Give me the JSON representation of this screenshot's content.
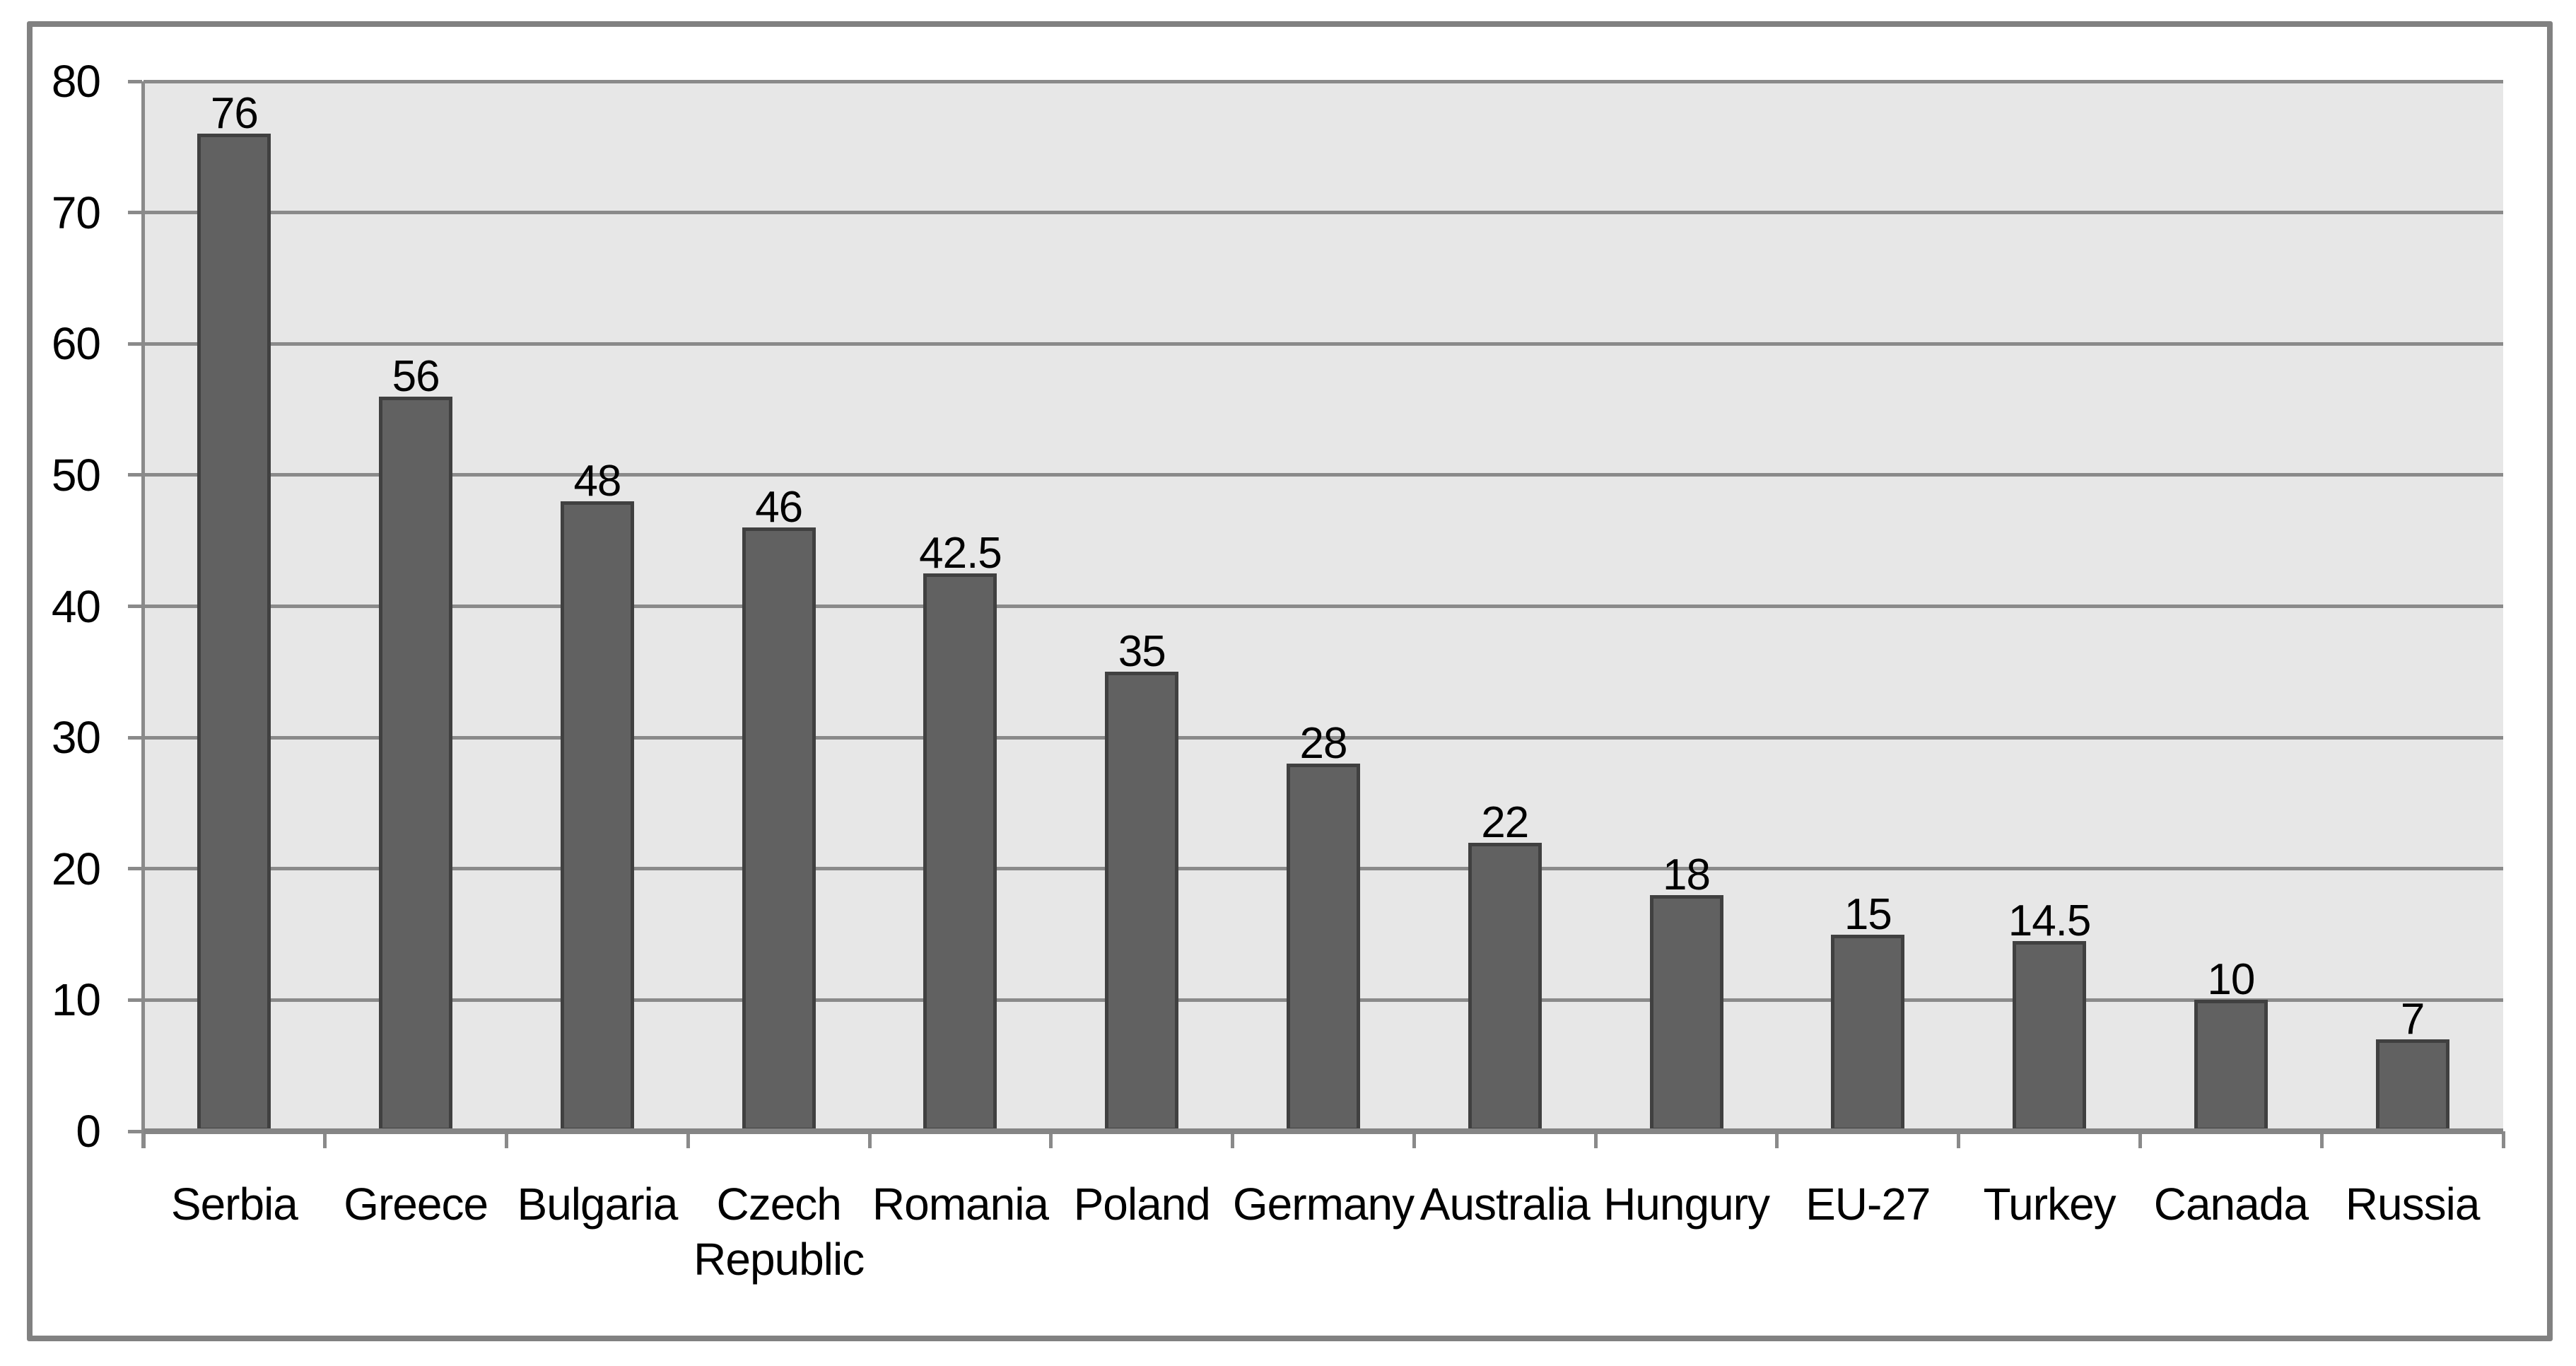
{
  "chart_data": {
    "type": "bar",
    "title": "",
    "xlabel": "",
    "ylabel": "",
    "categories": [
      "Serbia",
      "Greece",
      "Bulgaria",
      "Czech\nRepublic",
      "Romania",
      "Poland",
      "Germany",
      "Australia",
      "Hungury",
      "EU-27",
      "Turkey",
      "Canada",
      "Russia"
    ],
    "values": [
      76,
      56,
      48,
      46,
      42.5,
      35,
      28,
      22,
      18,
      15,
      14.5,
      10,
      7
    ],
    "value_labels": [
      "76",
      "56",
      "48",
      "46",
      "42.5",
      "35",
      "28",
      "22",
      "18",
      "15",
      "14.5",
      "10",
      "7"
    ],
    "ylim": [
      0,
      80
    ],
    "yticks": [
      "0",
      "10",
      "20",
      "30",
      "40",
      "50",
      "60",
      "70",
      "80"
    ],
    "ytick_step": 10,
    "grid": true,
    "legend": "none",
    "plot_area_shaded": true,
    "colors": {
      "bar_fill": "#616161",
      "bar_border": "#404040",
      "plot_bg": "#e7e7e7",
      "gridline": "#8a8a8a",
      "axis_line": "#858585",
      "frame_border": "#818181",
      "label_text": "#000000",
      "page_bg": "#ffffff"
    }
  }
}
